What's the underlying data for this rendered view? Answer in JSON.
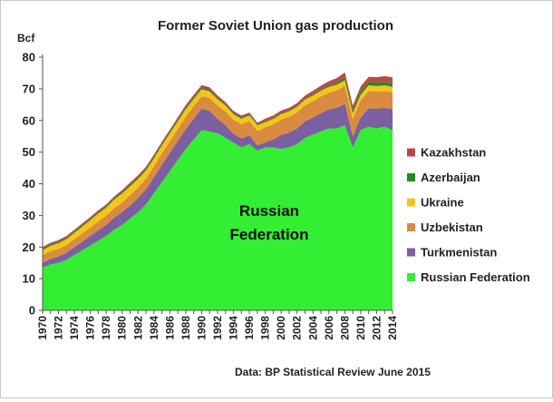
{
  "chart_data": {
    "type": "area",
    "stacked": true,
    "title": "Former Soviet Union gas production",
    "ylabel": "Bcf",
    "ylim": [
      0,
      80
    ],
    "yticks": [
      0,
      10,
      20,
      30,
      40,
      50,
      60,
      70,
      80
    ],
    "grid": false,
    "legend_position": "right",
    "footnote": "Data: BP Statistical Review June 2015",
    "annotation": [
      "Russian",
      "Federation"
    ],
    "x": [
      1970,
      1971,
      1972,
      1973,
      1974,
      1975,
      1976,
      1977,
      1978,
      1979,
      1980,
      1981,
      1982,
      1983,
      1984,
      1985,
      1986,
      1987,
      1988,
      1989,
      1990,
      1991,
      1992,
      1993,
      1994,
      1995,
      1996,
      1997,
      1998,
      1999,
      2000,
      2001,
      2002,
      2003,
      2004,
      2005,
      2006,
      2007,
      2008,
      2009,
      2010,
      2011,
      2012,
      2013,
      2014
    ],
    "xtick_labels": [
      "1970",
      "1972",
      "1974",
      "1976",
      "1978",
      "1980",
      "1982",
      "1984",
      "1986",
      "1988",
      "1990",
      "1992",
      "1994",
      "1996",
      "1998",
      "2000",
      "2002",
      "2004",
      "2006",
      "2008",
      "2010",
      "2012",
      "2014"
    ],
    "series": [
      {
        "name": "Russian Federation",
        "color": "#33ee33",
        "values": [
          13.5,
          14.5,
          15.0,
          16.0,
          17.5,
          19.0,
          20.5,
          22.0,
          23.5,
          25.5,
          27.0,
          29.0,
          31.0,
          33.5,
          37.0,
          40.5,
          44.0,
          47.5,
          51.0,
          54.0,
          57.0,
          56.5,
          56.0,
          54.5,
          53.0,
          51.5,
          52.5,
          50.5,
          51.5,
          51.5,
          51.0,
          51.5,
          52.5,
          54.5,
          55.5,
          56.5,
          57.5,
          57.5,
          58.5,
          51.5,
          57.0,
          58.0,
          57.5,
          58.0,
          57.0
        ]
      },
      {
        "name": "Turkmenistan",
        "color": "#7b5fa0",
        "values": [
          1.5,
          1.8,
          2.0,
          2.2,
          2.5,
          2.7,
          3.0,
          3.3,
          3.5,
          3.8,
          4.0,
          4.2,
          4.5,
          4.7,
          5.0,
          5.5,
          5.8,
          6.0,
          6.3,
          6.5,
          6.7,
          6.5,
          4.5,
          4.0,
          2.8,
          2.8,
          2.8,
          1.6,
          1.6,
          2.5,
          4.4,
          4.7,
          5.0,
          5.2,
          5.4,
          5.8,
          6.0,
          6.5,
          6.8,
          3.5,
          4.0,
          5.8,
          6.2,
          6.0,
          6.6
        ]
      },
      {
        "name": "Uzbekistan",
        "color": "#d98b40",
        "values": [
          2.5,
          2.4,
          2.4,
          2.4,
          2.5,
          2.6,
          2.7,
          2.8,
          2.9,
          3.0,
          3.1,
          3.2,
          3.3,
          3.4,
          3.5,
          3.6,
          3.7,
          3.8,
          3.9,
          4.0,
          4.0,
          4.1,
          4.2,
          4.3,
          4.4,
          4.5,
          4.6,
          4.6,
          4.7,
          4.8,
          4.9,
          5.0,
          5.0,
          5.1,
          5.2,
          5.3,
          5.3,
          5.5,
          5.6,
          5.5,
          5.4,
          5.5,
          5.4,
          5.3,
          5.3
        ]
      },
      {
        "name": "Ukraine",
        "color": "#f5c518",
        "values": [
          1.5,
          1.7,
          1.8,
          1.9,
          2.0,
          2.2,
          2.3,
          2.5,
          2.6,
          2.7,
          2.8,
          2.8,
          2.7,
          2.6,
          2.5,
          2.5,
          2.4,
          2.4,
          2.4,
          2.3,
          2.2,
          2.1,
          2.0,
          1.9,
          1.8,
          1.8,
          1.7,
          1.7,
          1.7,
          1.7,
          1.7,
          1.7,
          1.8,
          1.8,
          1.8,
          1.8,
          1.8,
          1.8,
          1.8,
          1.8,
          1.8,
          1.8,
          1.8,
          1.8,
          1.7
        ]
      },
      {
        "name": "Azerbaijan",
        "color": "#1e8c1e",
        "values": [
          0.4,
          0.4,
          0.4,
          0.4,
          0.4,
          0.4,
          0.4,
          0.4,
          0.4,
          0.4,
          0.5,
          0.5,
          0.5,
          0.5,
          0.5,
          0.5,
          0.5,
          0.5,
          0.5,
          0.5,
          0.5,
          0.5,
          0.4,
          0.4,
          0.4,
          0.4,
          0.3,
          0.3,
          0.3,
          0.3,
          0.3,
          0.3,
          0.3,
          0.3,
          0.3,
          0.3,
          0.4,
          0.6,
          0.9,
          0.9,
          1.0,
          1.0,
          1.0,
          1.0,
          1.1
        ]
      },
      {
        "name": "Kazakhstan",
        "color": "#b84a4a",
        "values": [
          0.6,
          0.6,
          0.6,
          0.6,
          0.6,
          0.6,
          0.6,
          0.6,
          0.6,
          0.6,
          0.6,
          0.7,
          0.7,
          0.7,
          0.7,
          0.7,
          0.7,
          0.8,
          0.8,
          0.8,
          0.8,
          0.8,
          0.8,
          0.7,
          0.6,
          0.6,
          0.6,
          0.6,
          0.8,
          0.8,
          0.8,
          0.8,
          0.9,
          1.0,
          1.2,
          1.3,
          1.4,
          1.5,
          1.6,
          1.5,
          1.6,
          1.7,
          1.8,
          1.9,
          1.9
        ]
      }
    ]
  }
}
